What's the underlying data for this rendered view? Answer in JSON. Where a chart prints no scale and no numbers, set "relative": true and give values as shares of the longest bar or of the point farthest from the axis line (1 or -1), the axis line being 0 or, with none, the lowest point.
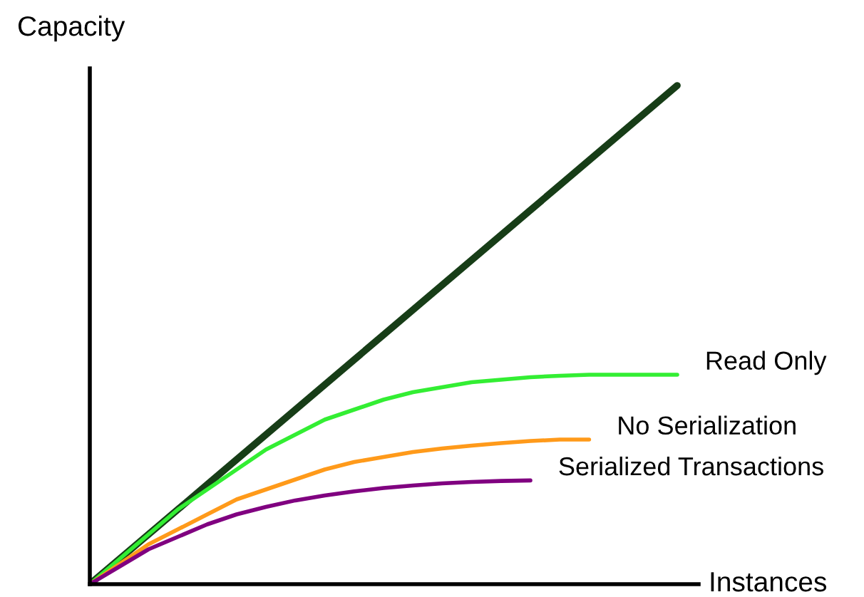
{
  "chart_data": {
    "type": "line",
    "relative": true,
    "xlabel": "Instances",
    "ylabel": "Capacity",
    "categories": [
      null,
      null,
      null,
      null,
      null,
      null,
      null,
      null,
      null,
      null,
      null,
      null,
      null,
      null,
      null,
      null,
      null,
      null,
      null,
      null,
      null
    ],
    "series": [
      {
        "color": "#173d17",
        "values": [
          0,
          0.05,
          0.1,
          0.15,
          0.2,
          0.25,
          0.3,
          0.35,
          0.4,
          0.45,
          0.5,
          0.55,
          0.6,
          0.65,
          0.7,
          0.75,
          0.8,
          0.85,
          0.9,
          0.95,
          1
        ]
      },
      {
        "name": "Read Only",
        "color": "#33ee33",
        "values": [
          0,
          0.05,
          0.1,
          0.15,
          0.19,
          0.23,
          0.27,
          0.3,
          0.33,
          0.35,
          0.37,
          0.385,
          0.395,
          0.405,
          0.41,
          0.415,
          0.418,
          0.42,
          0.42,
          0.42,
          0.42
        ]
      },
      {
        "name": "No Serialization",
        "color": "#ff9a1a",
        "values": [
          0,
          0.04,
          0.08,
          0.11,
          0.14,
          0.17,
          0.19,
          0.21,
          0.23,
          0.245,
          0.255,
          0.265,
          0.272,
          0.278,
          0.283,
          0.287,
          0.29,
          0.29,
          null,
          null,
          null
        ]
      },
      {
        "name": "Serialized Transactions",
        "color": "#800080",
        "values": [
          0,
          0.035,
          0.07,
          0.095,
          0.12,
          0.14,
          0.155,
          0.168,
          0.178,
          0.186,
          0.193,
          0.198,
          0.202,
          0.205,
          0.207,
          0.208,
          null,
          null,
          null,
          null,
          null
        ]
      }
    ]
  }
}
